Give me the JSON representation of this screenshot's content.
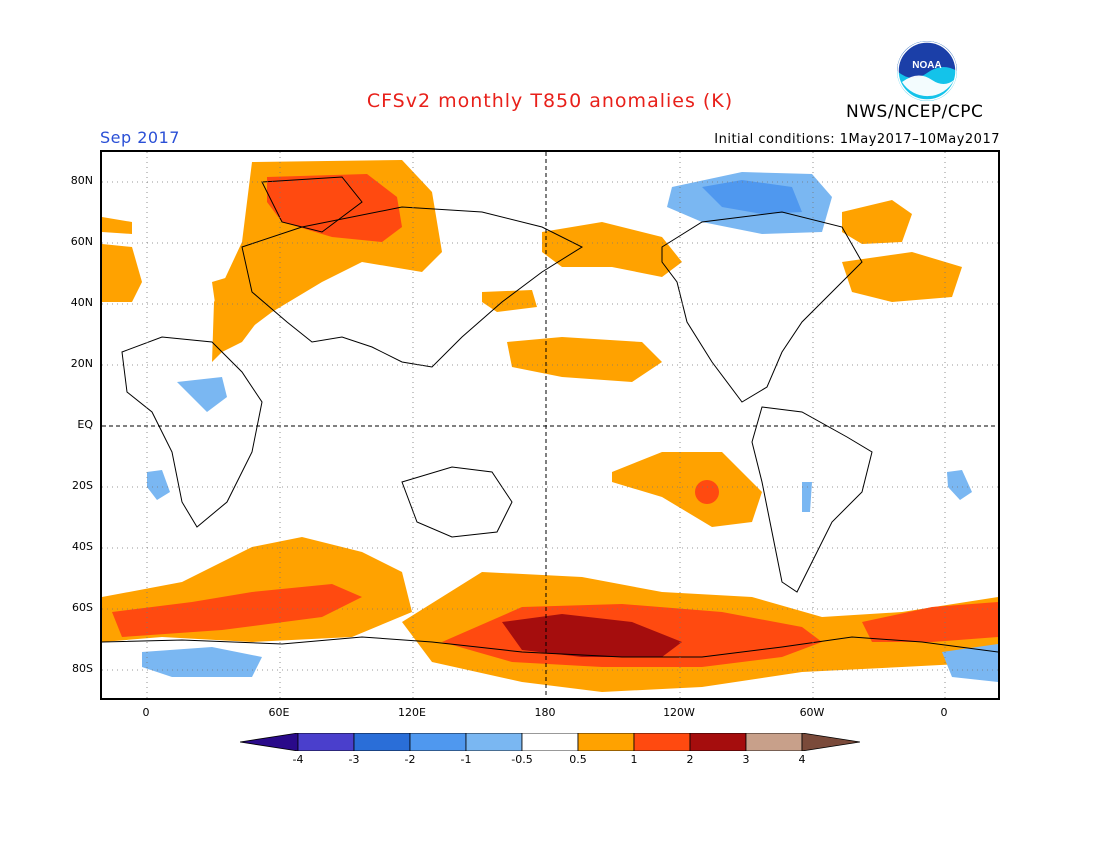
{
  "header": {
    "title": "CFSv2 monthly T850 anomalies (K)",
    "agency": "NWS/NCEP/CPC",
    "period": "Sep 2017",
    "initial_conditions": "Initial conditions: 1May2017–10May2017",
    "logo_text": "NOAA"
  },
  "map": {
    "lat_labels": [
      "80N",
      "60N",
      "40N",
      "20N",
      "EQ",
      "20S",
      "40S",
      "60S",
      "80S"
    ],
    "lon_labels": [
      "0",
      "60E",
      "120E",
      "180",
      "120W",
      "60W",
      "0"
    ]
  },
  "colorbar": {
    "labels": [
      "-4",
      "-3",
      "-2",
      "-1",
      "-0.5",
      "0.5",
      "1",
      "2",
      "3",
      "4"
    ],
    "colors": {
      "below_-4": "#2a0a8a",
      "-4_-3": "#4a3fcc",
      "-3_-2": "#2a6ed8",
      "-2_-1": "#4f98ef",
      "-1_-0.5": "#7ab7f2",
      "-0.5_0.5": "#ffffff",
      "0.5_1": "#ffa200",
      "1_2": "#ff4a10",
      "2_3": "#a50d0d",
      "3_4": "#c8a08a",
      "above_4": "#7a4a3a"
    }
  },
  "colors": {
    "title": "#e8201a",
    "period": "#2a4fd6",
    "land_outline": "#000000"
  }
}
